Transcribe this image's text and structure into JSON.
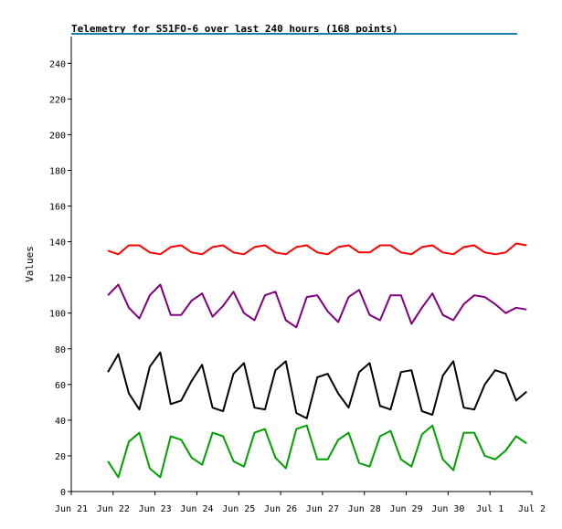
{
  "chart_data": {
    "type": "line",
    "title": "Telemetry for S51FO-6 over last 240 hours (168 points)",
    "xlabel": "",
    "ylabel": "Values",
    "ylim": [
      0,
      255
    ],
    "yticks": [
      0,
      20,
      40,
      60,
      80,
      100,
      120,
      140,
      160,
      180,
      200,
      220,
      240
    ],
    "xlim": [
      "Jun 21 00:00",
      "Jul 2 00:00"
    ],
    "xticks": [
      "Jun 21",
      "Jun 22",
      "Jun 23",
      "Jun 24",
      "Jun 25",
      "Jun 26",
      "Jun 27",
      "Jun 28",
      "Jun 29",
      "Jun 30",
      "Jul 1",
      "Jul 2"
    ],
    "grid": false,
    "colors": {
      "axis": "#000000",
      "top_rule": "#1a7fb0"
    },
    "series": [
      {
        "color": "#ff0000",
        "x": [
          "Jun 21 21:00",
          "Jun 22 03:00",
          "Jun 22 09:00",
          "Jun 22 15:00",
          "Jun 22 21:00",
          "Jun 23 03:00",
          "Jun 23 09:00",
          "Jun 23 15:00",
          "Jun 23 21:00",
          "Jun 24 03:00",
          "Jun 24 09:00",
          "Jun 24 15:00",
          "Jun 24 21:00",
          "Jun 25 03:00",
          "Jun 25 09:00",
          "Jun 25 15:00",
          "Jun 25 21:00",
          "Jun 26 03:00",
          "Jun 26 09:00",
          "Jun 26 15:00",
          "Jun 26 21:00",
          "Jun 27 03:00",
          "Jun 27 09:00",
          "Jun 27 15:00",
          "Jun 27 21:00",
          "Jun 28 03:00",
          "Jun 28 09:00",
          "Jun 28 15:00",
          "Jun 28 21:00",
          "Jun 29 03:00",
          "Jun 29 09:00",
          "Jun 29 15:00",
          "Jun 29 21:00",
          "Jun 30 03:00",
          "Jun 30 09:00",
          "Jun 30 15:00",
          "Jun 30 21:00",
          "Jul 1 03:00",
          "Jul 1 09:00",
          "Jul 1 15:00",
          "Jul 1 21:00"
        ],
        "values": [
          135,
          133,
          138,
          138,
          134,
          133,
          137,
          138,
          134,
          133,
          137,
          138,
          134,
          133,
          137,
          138,
          134,
          133,
          137,
          138,
          134,
          133,
          137,
          138,
          134,
          134,
          138,
          138,
          134,
          133,
          137,
          138,
          134,
          133,
          137,
          138,
          134,
          133,
          134,
          139,
          138
        ]
      },
      {
        "color": "#800080",
        "x": [
          "Jun 21 21:00",
          "Jun 22 03:00",
          "Jun 22 09:00",
          "Jun 22 15:00",
          "Jun 22 21:00",
          "Jun 23 03:00",
          "Jun 23 09:00",
          "Jun 23 15:00",
          "Jun 23 21:00",
          "Jun 24 03:00",
          "Jun 24 09:00",
          "Jun 24 15:00",
          "Jun 24 21:00",
          "Jun 25 03:00",
          "Jun 25 09:00",
          "Jun 25 15:00",
          "Jun 25 21:00",
          "Jun 26 03:00",
          "Jun 26 09:00",
          "Jun 26 15:00",
          "Jun 26 21:00",
          "Jun 27 03:00",
          "Jun 27 09:00",
          "Jun 27 15:00",
          "Jun 27 21:00",
          "Jun 28 03:00",
          "Jun 28 09:00",
          "Jun 28 15:00",
          "Jun 28 21:00",
          "Jun 29 03:00",
          "Jun 29 09:00",
          "Jun 29 15:00",
          "Jun 29 21:00",
          "Jun 30 03:00",
          "Jun 30 09:00",
          "Jun 30 15:00",
          "Jun 30 21:00",
          "Jul 1 03:00",
          "Jul 1 09:00",
          "Jul 1 15:00",
          "Jul 1 21:00"
        ],
        "values": [
          110,
          116,
          103,
          97,
          110,
          116,
          99,
          99,
          107,
          111,
          98,
          104,
          112,
          100,
          96,
          110,
          112,
          96,
          92,
          109,
          110,
          101,
          95,
          109,
          113,
          99,
          96,
          110,
          110,
          94,
          103,
          111,
          99,
          96,
          105,
          110,
          109,
          105,
          100,
          103,
          102
        ]
      },
      {
        "color": "#000000",
        "x": [
          "Jun 21 21:00",
          "Jun 22 03:00",
          "Jun 22 09:00",
          "Jun 22 15:00",
          "Jun 22 21:00",
          "Jun 23 03:00",
          "Jun 23 09:00",
          "Jun 23 15:00",
          "Jun 23 21:00",
          "Jun 24 03:00",
          "Jun 24 09:00",
          "Jun 24 15:00",
          "Jun 24 21:00",
          "Jun 25 03:00",
          "Jun 25 09:00",
          "Jun 25 15:00",
          "Jun 25 21:00",
          "Jun 26 03:00",
          "Jun 26 09:00",
          "Jun 26 15:00",
          "Jun 26 21:00",
          "Jun 27 03:00",
          "Jun 27 09:00",
          "Jun 27 15:00",
          "Jun 27 21:00",
          "Jun 28 03:00",
          "Jun 28 09:00",
          "Jun 28 15:00",
          "Jun 28 21:00",
          "Jun 29 03:00",
          "Jun 29 09:00",
          "Jun 29 15:00",
          "Jun 29 21:00",
          "Jun 30 03:00",
          "Jun 30 09:00",
          "Jun 30 15:00",
          "Jun 30 21:00",
          "Jul 1 03:00",
          "Jul 1 09:00",
          "Jul 1 15:00",
          "Jul 1 21:00"
        ],
        "values": [
          67,
          77,
          55,
          46,
          70,
          78,
          49,
          51,
          62,
          71,
          47,
          45,
          66,
          72,
          47,
          46,
          68,
          73,
          44,
          41,
          64,
          66,
          55,
          47,
          67,
          72,
          48,
          46,
          67,
          68,
          45,
          43,
          65,
          73,
          47,
          46,
          60,
          68,
          66,
          51,
          56
        ]
      },
      {
        "color": "#00a000",
        "x": [
          "Jun 21 21:00",
          "Jun 22 03:00",
          "Jun 22 09:00",
          "Jun 22 15:00",
          "Jun 22 21:00",
          "Jun 23 03:00",
          "Jun 23 09:00",
          "Jun 23 15:00",
          "Jun 23 21:00",
          "Jun 24 03:00",
          "Jun 24 09:00",
          "Jun 24 15:00",
          "Jun 24 21:00",
          "Jun 25 03:00",
          "Jun 25 09:00",
          "Jun 25 15:00",
          "Jun 25 21:00",
          "Jun 26 03:00",
          "Jun 26 09:00",
          "Jun 26 15:00",
          "Jun 26 21:00",
          "Jun 27 03:00",
          "Jun 27 09:00",
          "Jun 27 15:00",
          "Jun 27 21:00",
          "Jun 28 03:00",
          "Jun 28 09:00",
          "Jun 28 15:00",
          "Jun 28 21:00",
          "Jun 29 03:00",
          "Jun 29 09:00",
          "Jun 29 15:00",
          "Jun 29 21:00",
          "Jun 30 03:00",
          "Jun 30 09:00",
          "Jun 30 15:00",
          "Jun 30 21:00",
          "Jul 1 03:00",
          "Jul 1 09:00",
          "Jul 1 15:00",
          "Jul 1 21:00"
        ],
        "values": [
          17,
          8,
          28,
          33,
          13,
          8,
          31,
          29,
          19,
          15,
          33,
          31,
          17,
          14,
          33,
          35,
          19,
          13,
          35,
          37,
          18,
          18,
          29,
          33,
          16,
          14,
          31,
          34,
          18,
          14,
          32,
          37,
          18,
          12,
          33,
          33,
          20,
          18,
          23,
          31,
          27
        ]
      }
    ]
  }
}
